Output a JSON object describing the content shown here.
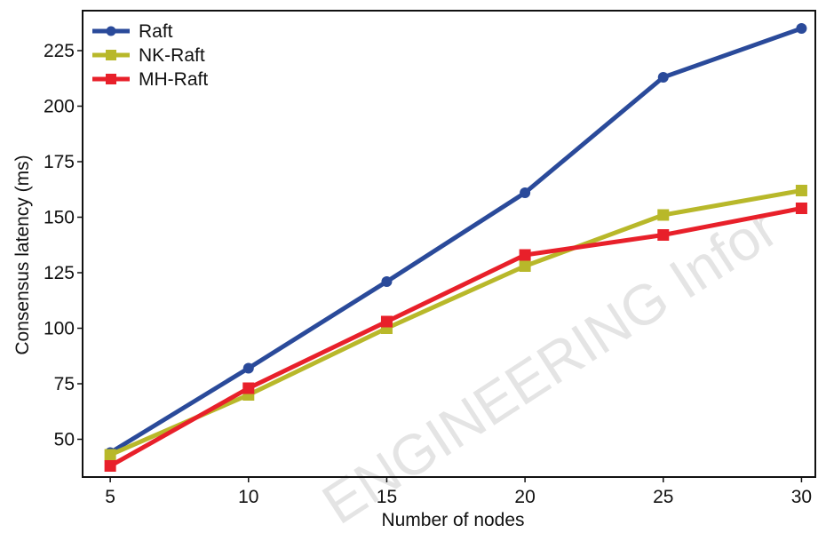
{
  "chart_data": {
    "type": "line",
    "xlabel": "Number of nodes",
    "ylabel": "Consensus latency (ms)",
    "x": [
      5,
      10,
      15,
      20,
      25,
      30
    ],
    "xlim": [
      4,
      30.5
    ],
    "ylim": [
      33,
      243
    ],
    "x_ticks": [
      5,
      10,
      15,
      20,
      25,
      30
    ],
    "y_ticks": [
      50,
      75,
      100,
      125,
      150,
      175,
      200,
      225
    ],
    "grid": false,
    "legend_position": "top-left",
    "series": [
      {
        "name": "Raft",
        "color": "#2a4a9a",
        "marker": "circle",
        "values": [
          44,
          82,
          121,
          161,
          213,
          235
        ]
      },
      {
        "name": "NK-Raft",
        "color": "#b8b82a",
        "marker": "square",
        "values": [
          43,
          70,
          100,
          128,
          151,
          162
        ]
      },
      {
        "name": "MH-Raft",
        "color": "#e8202a",
        "marker": "square",
        "values": [
          38,
          73,
          103,
          133,
          142,
          154
        ]
      }
    ]
  },
  "watermark": "ENGINEERING Infor"
}
